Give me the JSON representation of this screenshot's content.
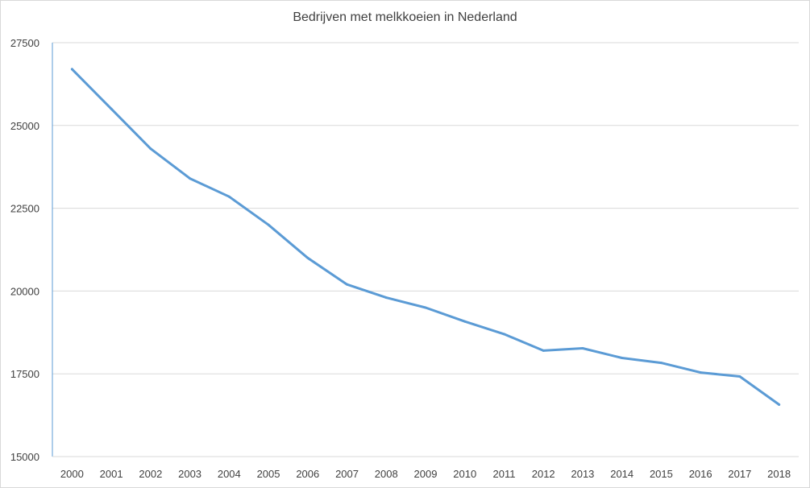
{
  "chart_data": {
    "type": "line",
    "title": "Bedrijven met melkkoeien in Nederland",
    "xlabel": "",
    "ylabel": "",
    "categories": [
      "2000",
      "2001",
      "2002",
      "2003",
      "2004",
      "2005",
      "2006",
      "2007",
      "2008",
      "2009",
      "2010",
      "2011",
      "2012",
      "2013",
      "2014",
      "2015",
      "2016",
      "2017",
      "2018"
    ],
    "series": [
      {
        "values": [
          26700,
          25500,
          24300,
          23400,
          22850,
          22000,
          21000,
          20200,
          19800,
          19500,
          19080,
          18700,
          18200,
          18270,
          17980,
          17830,
          17540,
          17420,
          16570
        ]
      }
    ],
    "ylim": [
      15000,
      27500
    ],
    "yticks": [
      15000,
      17500,
      20000,
      22500,
      25000,
      27500
    ],
    "grid": true,
    "legend": "none",
    "colors": {
      "line": "#5b9bd5",
      "grid": "#d9d9d9",
      "axis": "#5b9bd5",
      "text": "#404040"
    }
  }
}
